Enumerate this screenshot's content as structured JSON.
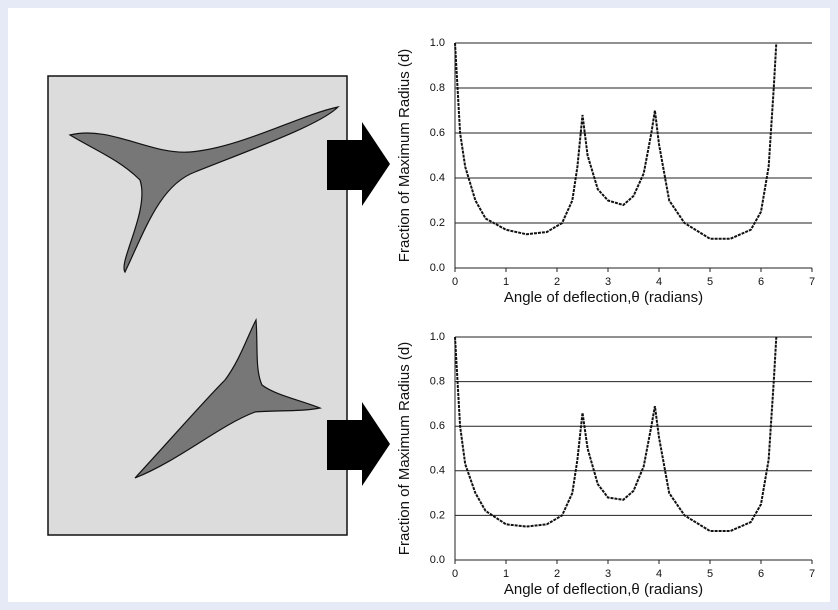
{
  "chart_data": [
    {
      "type": "line",
      "y_label": "Fraction of Maximum Radius (d)",
      "x_label": "Angle of deflection,θ (radians)",
      "xlim": [
        0,
        7
      ],
      "xticks": [
        0,
        1,
        2,
        3,
        4,
        5,
        6,
        7
      ],
      "ylim": [
        0,
        1
      ],
      "yticks": [
        {
          "value": 0,
          "label": "0.0"
        },
        0.2,
        0.4,
        0.6,
        0.8,
        {
          "value": 1,
          "label": "1.0"
        }
      ],
      "grid": true,
      "series": [
        {
          "color": "#111111",
          "x": [
            0,
            0.05,
            0.1,
            0.2,
            0.4,
            0.6,
            1.0,
            1.4,
            1.8,
            2.1,
            2.3,
            2.4,
            2.5,
            2.6,
            2.8,
            3.0,
            3.3,
            3.5,
            3.7,
            3.85,
            3.92,
            4.0,
            4.2,
            4.5,
            5.0,
            5.4,
            5.8,
            6.0,
            6.15,
            6.25,
            6.3
          ],
          "values": [
            1.0,
            0.8,
            0.6,
            0.45,
            0.3,
            0.22,
            0.17,
            0.15,
            0.16,
            0.2,
            0.3,
            0.45,
            0.68,
            0.5,
            0.35,
            0.3,
            0.28,
            0.32,
            0.42,
            0.6,
            0.7,
            0.55,
            0.3,
            0.2,
            0.13,
            0.13,
            0.17,
            0.25,
            0.45,
            0.8,
            1.0
          ]
        }
      ]
    },
    {
      "type": "line",
      "y_label": "Fraction of Maximum Radius (d)",
      "x_label": "Angle of deflection,θ (radians)",
      "xlim": [
        0,
        7
      ],
      "xticks": [
        0,
        1,
        2,
        3,
        4,
        5,
        6,
        7
      ],
      "ylim": [
        0,
        1
      ],
      "yticks": [
        {
          "value": 0,
          "label": "0.0"
        },
        0.2,
        0.4,
        0.6,
        0.8,
        {
          "value": 1,
          "label": "1.0"
        }
      ],
      "grid": true,
      "series": [
        {
          "color": "#111111",
          "x": [
            0,
            0.05,
            0.1,
            0.2,
            0.4,
            0.6,
            1.0,
            1.4,
            1.8,
            2.1,
            2.3,
            2.4,
            2.5,
            2.6,
            2.8,
            3.0,
            3.3,
            3.5,
            3.7,
            3.85,
            3.92,
            4.0,
            4.2,
            4.5,
            5.0,
            5.4,
            5.8,
            6.0,
            6.15,
            6.25,
            6.3
          ],
          "values": [
            1.0,
            0.8,
            0.6,
            0.43,
            0.3,
            0.22,
            0.16,
            0.15,
            0.16,
            0.2,
            0.3,
            0.45,
            0.66,
            0.5,
            0.34,
            0.28,
            0.27,
            0.31,
            0.42,
            0.6,
            0.69,
            0.55,
            0.3,
            0.2,
            0.13,
            0.13,
            0.17,
            0.25,
            0.45,
            0.8,
            1.0
          ]
        }
      ]
    }
  ]
}
